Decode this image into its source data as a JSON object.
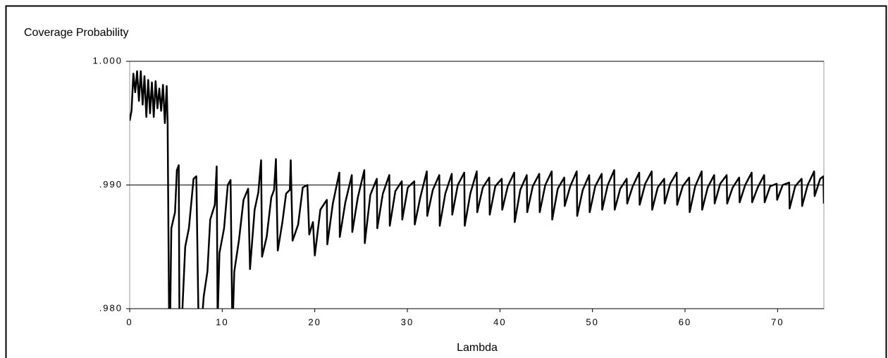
{
  "chart_data": {
    "type": "line",
    "title": "Coverage Probability",
    "x_label": "Lambda",
    "xlim": [
      0,
      75
    ],
    "xticks": [
      0,
      10,
      20,
      30,
      40,
      50,
      60,
      70
    ],
    "ylim": [
      0.98,
      1.0
    ],
    "yticks": [
      {
        "value": 0.98,
        "label": ".980"
      },
      {
        "value": 0.99,
        "label": ".990"
      },
      {
        "value": 1.0,
        "label": "1.000"
      }
    ],
    "grid": true,
    "color": "#000000",
    "x": [
      0,
      0.2,
      0.4,
      0.6,
      0.8,
      1.0,
      1.2,
      1.4,
      1.6,
      1.8,
      2.0,
      2.2,
      2.4,
      2.6,
      2.8,
      3.0,
      3.2,
      3.4,
      3.6,
      3.8,
      4.0,
      4.1,
      4.3,
      4.5,
      4.9,
      5.1,
      5.3,
      5.4,
      6.0,
      6.4,
      6.9,
      7.2,
      7.5,
      8.0,
      8.4,
      8.7,
      9.2,
      9.4,
      9.5,
      9.7,
      10.2,
      10.6,
      10.9,
      11.1,
      11.3,
      11.8,
      12.3,
      12.8,
      13.0,
      13.5,
      13.9,
      14.2,
      14.3,
      14.8,
      15.3,
      15.6,
      15.8,
      16.0,
      16.5,
      16.9,
      17.3,
      17.4,
      17.6,
      18.2,
      18.7,
      19.2,
      19.4,
      19.8,
      20.0,
      20.6,
      21.3,
      21.35,
      21.95,
      22.65,
      22.7,
      23.3,
      24.0,
      24.05,
      24.65,
      25.35,
      25.4,
      26.0,
      26.7,
      26.75,
      27.35,
      28.05,
      28.1,
      28.7,
      29.4,
      29.45,
      30.05,
      30.75,
      30.8,
      31.4,
      32.1,
      32.15,
      32.75,
      33.45,
      33.5,
      34.1,
      34.8,
      34.85,
      35.45,
      36.15,
      36.2,
      36.8,
      37.5,
      37.55,
      38.15,
      38.85,
      38.9,
      39.5,
      40.2,
      40.25,
      40.85,
      41.55,
      41.6,
      42.2,
      42.9,
      42.95,
      43.55,
      44.25,
      44.3,
      44.9,
      45.6,
      45.65,
      46.25,
      46.95,
      47.0,
      47.6,
      48.3,
      48.35,
      48.95,
      49.65,
      49.7,
      50.3,
      51.0,
      51.05,
      51.65,
      52.35,
      52.4,
      53.0,
      53.7,
      53.75,
      54.35,
      55.05,
      55.1,
      55.7,
      56.4,
      56.45,
      57.05,
      57.75,
      57.8,
      58.4,
      59.1,
      59.15,
      59.75,
      60.45,
      60.5,
      61.1,
      61.8,
      61.85,
      62.45,
      63.15,
      63.2,
      63.8,
      64.5,
      64.55,
      65.15,
      65.85,
      65.9,
      66.5,
      67.2,
      67.25,
      67.85,
      68.55,
      68.6,
      69.2,
      69.9,
      69.95,
      70.55,
      71.25,
      71.3,
      71.9,
      72.6,
      72.65,
      73.25,
      73.95,
      74.0,
      74.6,
      74.95,
      75.0
    ],
    "values": [
      0.9952,
      0.996,
      0.999,
      0.9975,
      0.9992,
      0.9968,
      0.9992,
      0.9965,
      0.9988,
      0.9955,
      0.9985,
      0.9958,
      0.9983,
      0.9955,
      0.9984,
      0.9962,
      0.9978,
      0.996,
      0.9981,
      0.995,
      0.998,
      0.995,
      0.975,
      0.9865,
      0.9878,
      0.9912,
      0.9916,
      0.975,
      0.985,
      0.9865,
      0.9905,
      0.9907,
      0.976,
      0.981,
      0.983,
      0.9872,
      0.9884,
      0.9915,
      0.979,
      0.9845,
      0.9865,
      0.99,
      0.9904,
      0.978,
      0.983,
      0.9855,
      0.9888,
      0.9897,
      0.9832,
      0.988,
      0.9894,
      0.992,
      0.9842,
      0.9858,
      0.989,
      0.9896,
      0.9921,
      0.9847,
      0.987,
      0.9893,
      0.9896,
      0.992,
      0.9855,
      0.9868,
      0.9898,
      0.99,
      0.986,
      0.987,
      0.9843,
      0.988,
      0.9888,
      0.9852,
      0.9885,
      0.991,
      0.9858,
      0.9886,
      0.9908,
      0.9862,
      0.989,
      0.9912,
      0.9853,
      0.9892,
      0.9905,
      0.9865,
      0.9893,
      0.9908,
      0.9867,
      0.9895,
      0.9903,
      0.9872,
      0.9898,
      0.9903,
      0.9868,
      0.989,
      0.9911,
      0.9875,
      0.9896,
      0.9908,
      0.9867,
      0.9893,
      0.9909,
      0.9876,
      0.99,
      0.991,
      0.9867,
      0.9893,
      0.9911,
      0.9878,
      0.9898,
      0.9906,
      0.9876,
      0.9899,
      0.9905,
      0.988,
      0.9899,
      0.991,
      0.987,
      0.9896,
      0.9908,
      0.9878,
      0.9899,
      0.9909,
      0.9878,
      0.99,
      0.9911,
      0.9872,
      0.9897,
      0.9906,
      0.9883,
      0.9899,
      0.9911,
      0.9875,
      0.9896,
      0.9908,
      0.9878,
      0.9899,
      0.9909,
      0.988,
      0.99,
      0.9912,
      0.988,
      0.9897,
      0.9905,
      0.9885,
      0.9899,
      0.991,
      0.9884,
      0.9901,
      0.9911,
      0.988,
      0.9898,
      0.9905,
      0.9885,
      0.9901,
      0.991,
      0.9884,
      0.9899,
      0.9906,
      0.9878,
      0.9899,
      0.9911,
      0.988,
      0.9898,
      0.9908,
      0.9885,
      0.9901,
      0.9908,
      0.9885,
      0.9898,
      0.9906,
      0.9886,
      0.99,
      0.991,
      0.9886,
      0.9898,
      0.9908,
      0.9886,
      0.9899,
      0.9901,
      0.9888,
      0.99,
      0.9902,
      0.9881,
      0.9899,
      0.9905,
      0.9883,
      0.99,
      0.9911,
      0.9891,
      0.9905,
      0.9907,
      0.9885
    ]
  }
}
